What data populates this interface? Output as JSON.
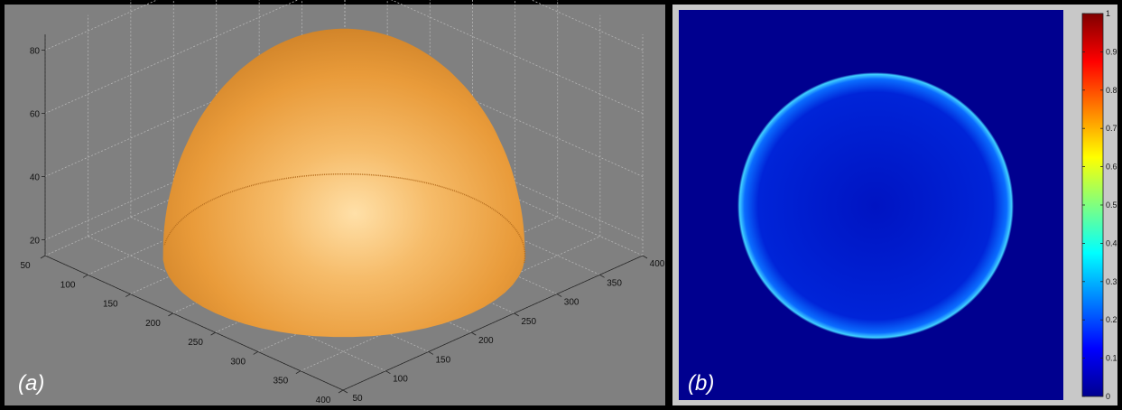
{
  "chart_data": [
    {
      "panel": "(a)",
      "type": "surface",
      "x_ticks": [
        "50",
        "100",
        "150",
        "200",
        "250",
        "300",
        "350",
        "400"
      ],
      "y_ticks": [
        "50",
        "100",
        "150",
        "200",
        "250",
        "300",
        "350",
        "400"
      ],
      "z_ticks": [
        "20",
        "40",
        "60",
        "80"
      ],
      "xlim": [
        50,
        400
      ],
      "ylim": [
        50,
        400
      ],
      "zlim": [
        15,
        85
      ],
      "dome": {
        "center_x": 225,
        "center_y": 225,
        "radius": 150,
        "peak_z": 82,
        "base_z": 15
      },
      "surface_color": "#e9a040",
      "background_color": "#808080"
    },
    {
      "panel": "(b)",
      "type": "heatmap",
      "colormap": "jet",
      "colorbar_ticks": [
        "0",
        "0.1",
        "0.2",
        "0.3",
        "0.4",
        "0.5",
        "0.6",
        "0.7",
        "0.8",
        "0.9",
        "1"
      ],
      "clim": [
        0,
        1
      ],
      "background_value": 0.02,
      "disk_interior_value": 0.08,
      "rim_value": 0.3
    }
  ],
  "colors": {
    "panel_a_bg": "#808080",
    "panel_b_bg": "#00008f",
    "frame": "#000000",
    "panel_b_frame": "#c8c8c8"
  }
}
